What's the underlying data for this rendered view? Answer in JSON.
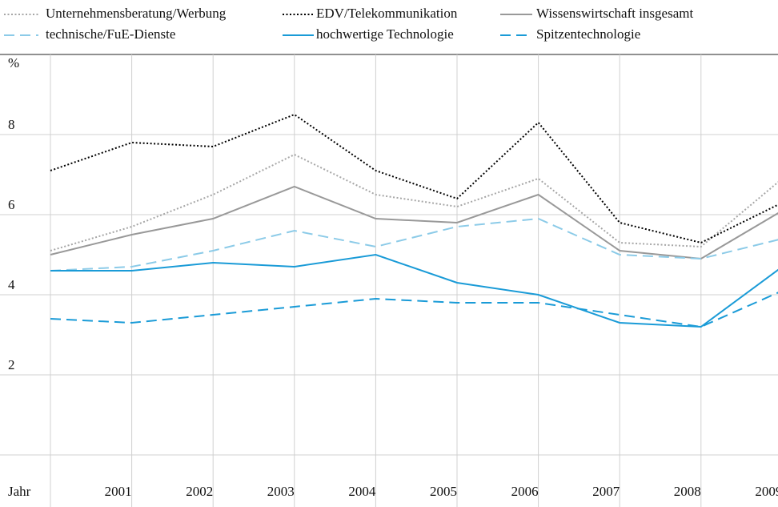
{
  "chart_data": {
    "type": "line",
    "y_label": "%",
    "x_label": "Jahr",
    "categories": [
      null,
      "2001",
      "2002",
      "2003",
      "2004",
      "2005",
      "2006",
      "2007",
      "2008",
      "2009"
    ],
    "ylim": [
      0,
      10
    ],
    "yticks": [
      2,
      4,
      6,
      8
    ],
    "grid": true,
    "series": [
      {
        "name": "Unternehmensberatung/Werbung",
        "color": "#a6a6a6",
        "style": "dotted",
        "values": [
          5.1,
          5.7,
          6.5,
          7.5,
          6.5,
          6.2,
          6.9,
          5.3,
          5.2,
          6.9
        ]
      },
      {
        "name": "EDV/Telekommunikation",
        "color": "#000000",
        "style": "dotted",
        "values": [
          7.1,
          7.8,
          7.7,
          8.5,
          7.1,
          6.4,
          8.3,
          5.8,
          5.3,
          6.3
        ]
      },
      {
        "name": "Wissenswirtschaft insgesamt",
        "color": "#999999",
        "style": "solid",
        "values": [
          5.0,
          5.5,
          5.9,
          6.7,
          5.9,
          5.8,
          6.5,
          5.1,
          4.9,
          6.1
        ]
      },
      {
        "name": "technische/FuE-Dienste",
        "color": "#8ccbe8",
        "style": "dashed",
        "values": [
          4.6,
          4.7,
          5.1,
          5.6,
          5.2,
          5.7,
          5.9,
          5.0,
          4.9,
          5.4
        ]
      },
      {
        "name": "hochwertige Technologie",
        "color": "#1a9bd7",
        "style": "solid",
        "values": [
          4.6,
          4.6,
          4.8,
          4.7,
          5.0,
          4.3,
          4.0,
          3.3,
          3.2,
          4.7
        ]
      },
      {
        "name": "Spitzentechnologie",
        "color": "#1a9bd7",
        "style": "dashed",
        "values": [
          3.4,
          3.3,
          3.5,
          3.7,
          3.9,
          3.8,
          3.8,
          3.5,
          3.2,
          4.1
        ]
      }
    ]
  }
}
